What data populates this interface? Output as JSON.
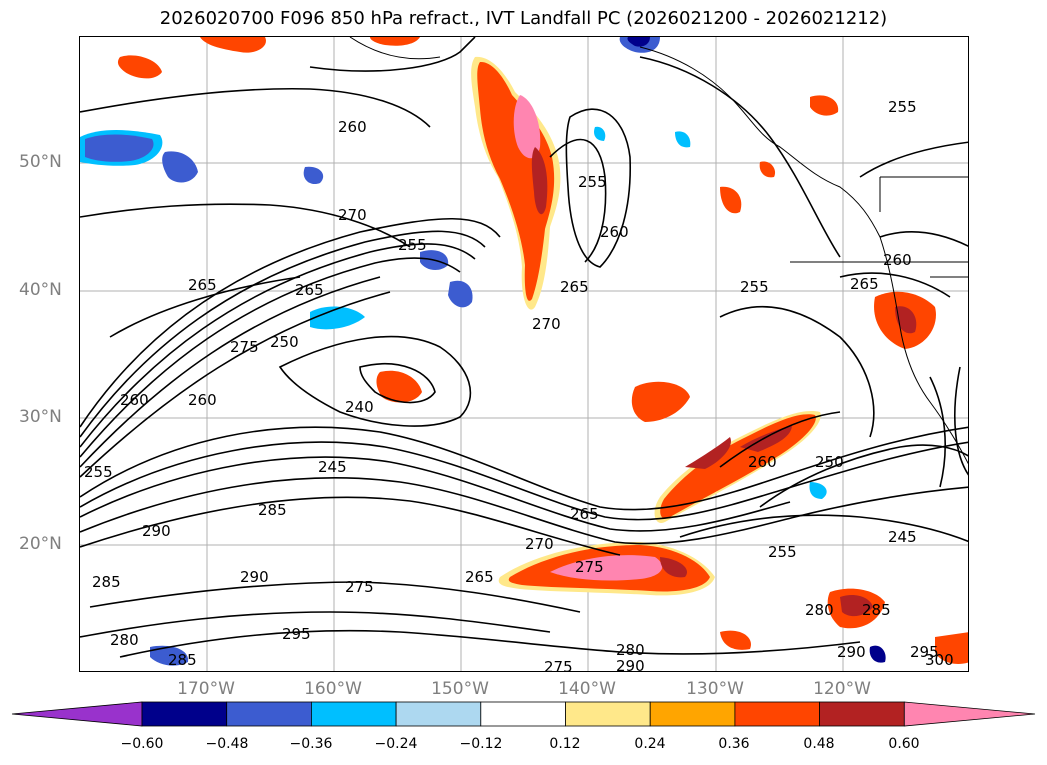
{
  "title": "2026020700 F096 850 hPa refract., IVT Landfall PC (2026021200 - 2026021212)",
  "map": {
    "lat_labels": [
      "50°N",
      "40°N",
      "30°N",
      "20°N"
    ],
    "lon_labels": [
      "170°W",
      "160°W",
      "150°W",
      "140°W",
      "130°W",
      "120°W"
    ],
    "contour_labels": [
      "260",
      "270",
      "255",
      "265",
      "275",
      "250",
      "260",
      "265",
      "260",
      "255",
      "260",
      "265",
      "255",
      "270",
      "240",
      "245",
      "255",
      "285",
      "290",
      "265",
      "270",
      "265",
      "275",
      "260",
      "250",
      "255",
      "245",
      "290",
      "285",
      "275",
      "280",
      "285",
      "295",
      "280",
      "275",
      "290",
      "280",
      "285",
      "290",
      "295",
      "300",
      "255",
      "260",
      "265"
    ]
  },
  "colorbar": {
    "ticks": [
      "−0.60",
      "−0.48",
      "−0.36",
      "−0.24",
      "−0.12",
      "0.12",
      "0.24",
      "0.36",
      "0.48",
      "0.60"
    ],
    "colors": [
      "#9932cc",
      "#00008b",
      "#3c5cd0",
      "#00bfff",
      "#add8f0",
      "#ffffff",
      "#ffe88a",
      "#ffa500",
      "#ff4500",
      "#b22222",
      "#ff85b0"
    ]
  }
}
